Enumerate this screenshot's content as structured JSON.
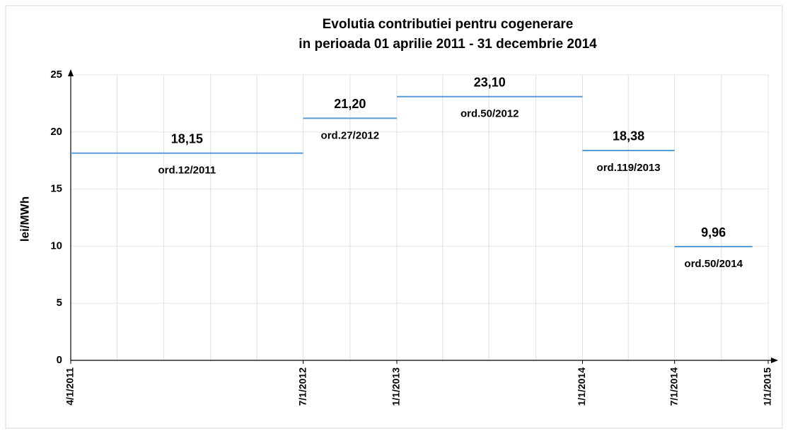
{
  "chart_data": {
    "type": "step",
    "title": [
      "Evolutia contributiei pentru cogenerare",
      "in perioada 01 aprilie 2011 - 31 decembrie 2014"
    ],
    "y_label": "lei/MWh",
    "color": "#5b9bd5",
    "grid": true,
    "xlim": [
      "4/1/2011",
      "1/1/2015"
    ],
    "xticks": [
      "4/1/2011",
      "7/1/2012",
      "1/1/2013",
      "1/1/2014",
      "7/1/2014",
      "1/1/2015"
    ],
    "ylim": [
      0,
      25
    ],
    "yticks": [
      0,
      5,
      10,
      15,
      20,
      25
    ],
    "segments": [
      {
        "start": "4/1/2011",
        "end": "7/1/2012",
        "value": 18.15,
        "value_label": "18,15",
        "label": "ord.12/2011"
      },
      {
        "start": "7/1/2012",
        "end": "1/1/2013",
        "value": 21.2,
        "value_label": "21,20",
        "label": "ord.27/2012"
      },
      {
        "start": "1/1/2013",
        "end": "1/1/2014",
        "value": 23.1,
        "value_label": "23,10",
        "label": "ord.50/2012"
      },
      {
        "start": "1/1/2014",
        "end": "7/1/2014",
        "value": 18.38,
        "value_label": "18,38",
        "label": "ord.119/2013"
      },
      {
        "start": "7/1/2014",
        "end": "12/1/2014",
        "value": 9.96,
        "value_label": "9,96",
        "label": "ord.50/2014"
      }
    ]
  }
}
